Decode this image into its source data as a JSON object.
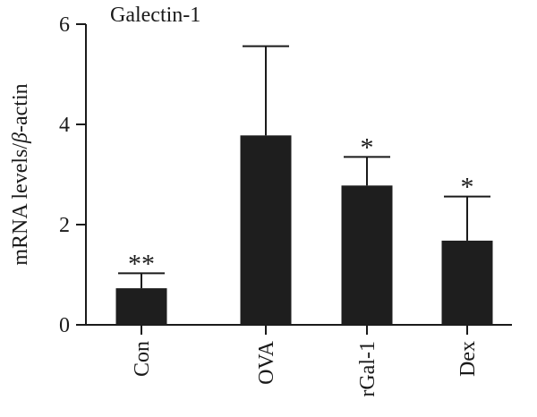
{
  "chart_data": {
    "type": "bar",
    "title": "Galectin-1",
    "ylabel_prefix": "mRNA levels/",
    "ylabel_symbol": "β",
    "ylabel_suffix": "-actin",
    "xlabel": "",
    "categories": [
      "Con",
      "OVA",
      "rGal-1",
      "Dex"
    ],
    "values": [
      0.73,
      3.78,
      2.78,
      1.68
    ],
    "errors": [
      0.3,
      1.78,
      0.57,
      0.88
    ],
    "significance": [
      "**",
      "",
      "*",
      "*"
    ],
    "ylim": [
      0,
      6
    ],
    "yticks": [
      0,
      2,
      4,
      6
    ],
    "ytick_labels": [
      "0",
      "2",
      "4",
      "6"
    ],
    "grid": false,
    "bar_color": "#1e1e1e"
  }
}
